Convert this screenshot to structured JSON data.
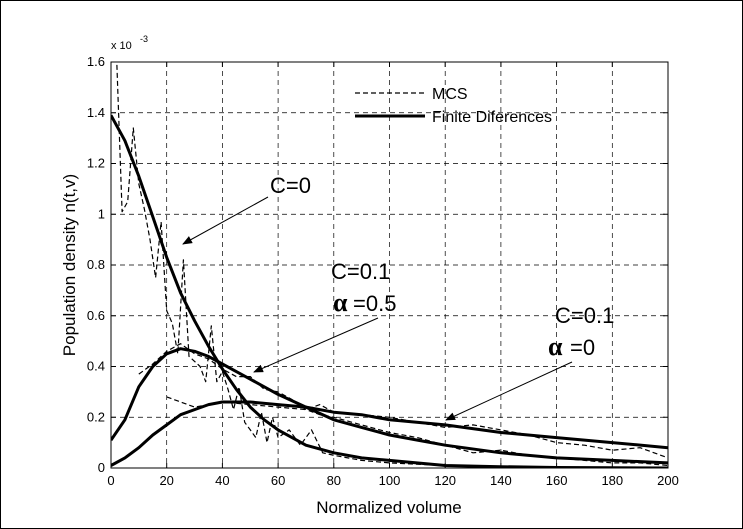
{
  "chart_data": {
    "type": "line",
    "xlabel": "Normalized volume",
    "ylabel": "Population density n(t,v)",
    "xlim": [
      0,
      200
    ],
    "ylim": [
      0,
      0.0016
    ],
    "x_ticks": [
      0,
      20,
      40,
      60,
      80,
      100,
      120,
      140,
      160,
      180,
      200
    ],
    "y_ticks": [
      0,
      0.0002,
      0.0004,
      0.0006,
      0.0008,
      0.001,
      0.0012,
      0.0014,
      0.0016
    ],
    "y_tick_labels": [
      "0",
      "0.2",
      "0.4",
      "0.6",
      "0.8",
      "1",
      "1.2",
      "1.4",
      "1.6"
    ],
    "y_multiplier_label": "x 10",
    "y_multiplier_exponent": "-3",
    "grid": true,
    "legend_position": "top-right",
    "legend": [
      {
        "label": "MCS",
        "style": "dashed"
      },
      {
        "label": "Finite Diferences",
        "style": "solid"
      }
    ],
    "series": [
      {
        "legend": "Finite Diferences",
        "style": "solid",
        "case": "C=0",
        "x": [
          0,
          5,
          10,
          15,
          20,
          25,
          30,
          35,
          40,
          45,
          50,
          55,
          60,
          70,
          80,
          90,
          100,
          120,
          140,
          160,
          180,
          200
        ],
        "y": [
          0.00139,
          0.00129,
          0.00115,
          0.00099,
          0.00083,
          0.00069,
          0.00058,
          0.00048,
          0.00039,
          0.00031,
          0.00024,
          0.00019,
          0.00015,
          9e-05,
          6e-05,
          4e-05,
          3e-05,
          1e-05,
          5e-06,
          2e-06,
          1e-06,
          0.0
        ]
      },
      {
        "legend": "MCS",
        "style": "dashed",
        "case": "C=0",
        "x": [
          2,
          4,
          6,
          8,
          10,
          12,
          14,
          16,
          18,
          20,
          22,
          24,
          26,
          28,
          30,
          32,
          34,
          36,
          38,
          40,
          42,
          44,
          46,
          48,
          50,
          52,
          54,
          56,
          58,
          60,
          64,
          68,
          72,
          76,
          80,
          90,
          100,
          120,
          140,
          160,
          180,
          200
        ],
        "y": [
          0.00162,
          0.00101,
          0.00105,
          0.00134,
          0.00112,
          0.00102,
          0.0009,
          0.00075,
          0.00097,
          0.00062,
          0.00057,
          0.00045,
          0.00082,
          0.00044,
          0.00042,
          0.0004,
          0.00034,
          0.00056,
          0.00034,
          0.00038,
          0.00031,
          0.00023,
          0.00032,
          0.00018,
          0.00015,
          0.00012,
          0.00022,
          0.0001,
          0.0002,
          0.00012,
          0.00015,
          9e-05,
          0.00015,
          6e-05,
          5e-05,
          3e-05,
          2e-05,
          1e-05,
          5e-06,
          0.0,
          0.0,
          0.0
        ]
      },
      {
        "legend": "Finite Diferences",
        "style": "solid",
        "case": "C=0.1, α=0.5",
        "x": [
          0,
          5,
          10,
          15,
          20,
          25,
          30,
          35,
          40,
          45,
          50,
          60,
          70,
          80,
          90,
          100,
          110,
          120,
          140,
          160,
          180,
          200
        ],
        "y": [
          0.00011,
          0.00019,
          0.00032,
          0.0004,
          0.00045,
          0.00047,
          0.00046,
          0.00044,
          0.00041,
          0.00038,
          0.00035,
          0.00029,
          0.00024,
          0.00019,
          0.00016,
          0.00013,
          0.00011,
          9e-05,
          6e-05,
          4e-05,
          3e-05,
          2e-05
        ]
      },
      {
        "legend": "MCS",
        "style": "dashed",
        "case": "C=0.1, α=0.5",
        "x": [
          10,
          15,
          20,
          25,
          30,
          35,
          40,
          45,
          50,
          55,
          60,
          65,
          70,
          75,
          80,
          90,
          100,
          110,
          120,
          130,
          140,
          150,
          160,
          170,
          180,
          190,
          200
        ],
        "y": [
          0.00037,
          0.00041,
          0.00046,
          0.00049,
          0.00045,
          0.00043,
          0.00039,
          0.00036,
          0.00036,
          0.00031,
          0.0003,
          0.00027,
          0.00023,
          0.00021,
          0.0002,
          0.00017,
          0.00014,
          0.00012,
          9e-05,
          6e-05,
          7e-05,
          5e-05,
          4e-05,
          3e-05,
          2e-05,
          2e-05,
          1e-05
        ]
      },
      {
        "legend": "Finite Diferences",
        "style": "solid",
        "case": "C=0.1, α=0",
        "x": [
          0,
          5,
          10,
          15,
          20,
          25,
          30,
          35,
          40,
          45,
          50,
          60,
          70,
          80,
          90,
          100,
          120,
          140,
          160,
          180,
          200
        ],
        "y": [
          1e-05,
          4e-05,
          8e-05,
          0.00013,
          0.00017,
          0.00021,
          0.00023,
          0.00025,
          0.00026,
          0.00026,
          0.00026,
          0.00025,
          0.00024,
          0.00022,
          0.00021,
          0.00019,
          0.00017,
          0.00014,
          0.00012,
          0.0001,
          8e-05
        ]
      },
      {
        "legend": "MCS",
        "style": "dashed",
        "case": "C=0.1, α=0",
        "x": [
          20,
          30,
          40,
          50,
          60,
          70,
          75,
          80,
          90,
          100,
          110,
          120,
          130,
          140,
          150,
          160,
          170,
          180,
          190,
          200
        ],
        "y": [
          0.00028,
          0.00024,
          0.00026,
          0.00025,
          0.00024,
          0.00023,
          0.00025,
          0.00022,
          0.00021,
          0.0002,
          0.00018,
          0.00016,
          0.00017,
          0.00015,
          0.00013,
          0.0001,
          9e-05,
          7e-05,
          8e-05,
          4e-05
        ]
      }
    ],
    "annotations": [
      {
        "text": "C=0"
      },
      {
        "text": "C=0.1"
      },
      {
        "greek": "α",
        "text": "=0.5"
      },
      {
        "text": "C=0.1"
      },
      {
        "greek": "α",
        "text": "=0"
      }
    ]
  }
}
